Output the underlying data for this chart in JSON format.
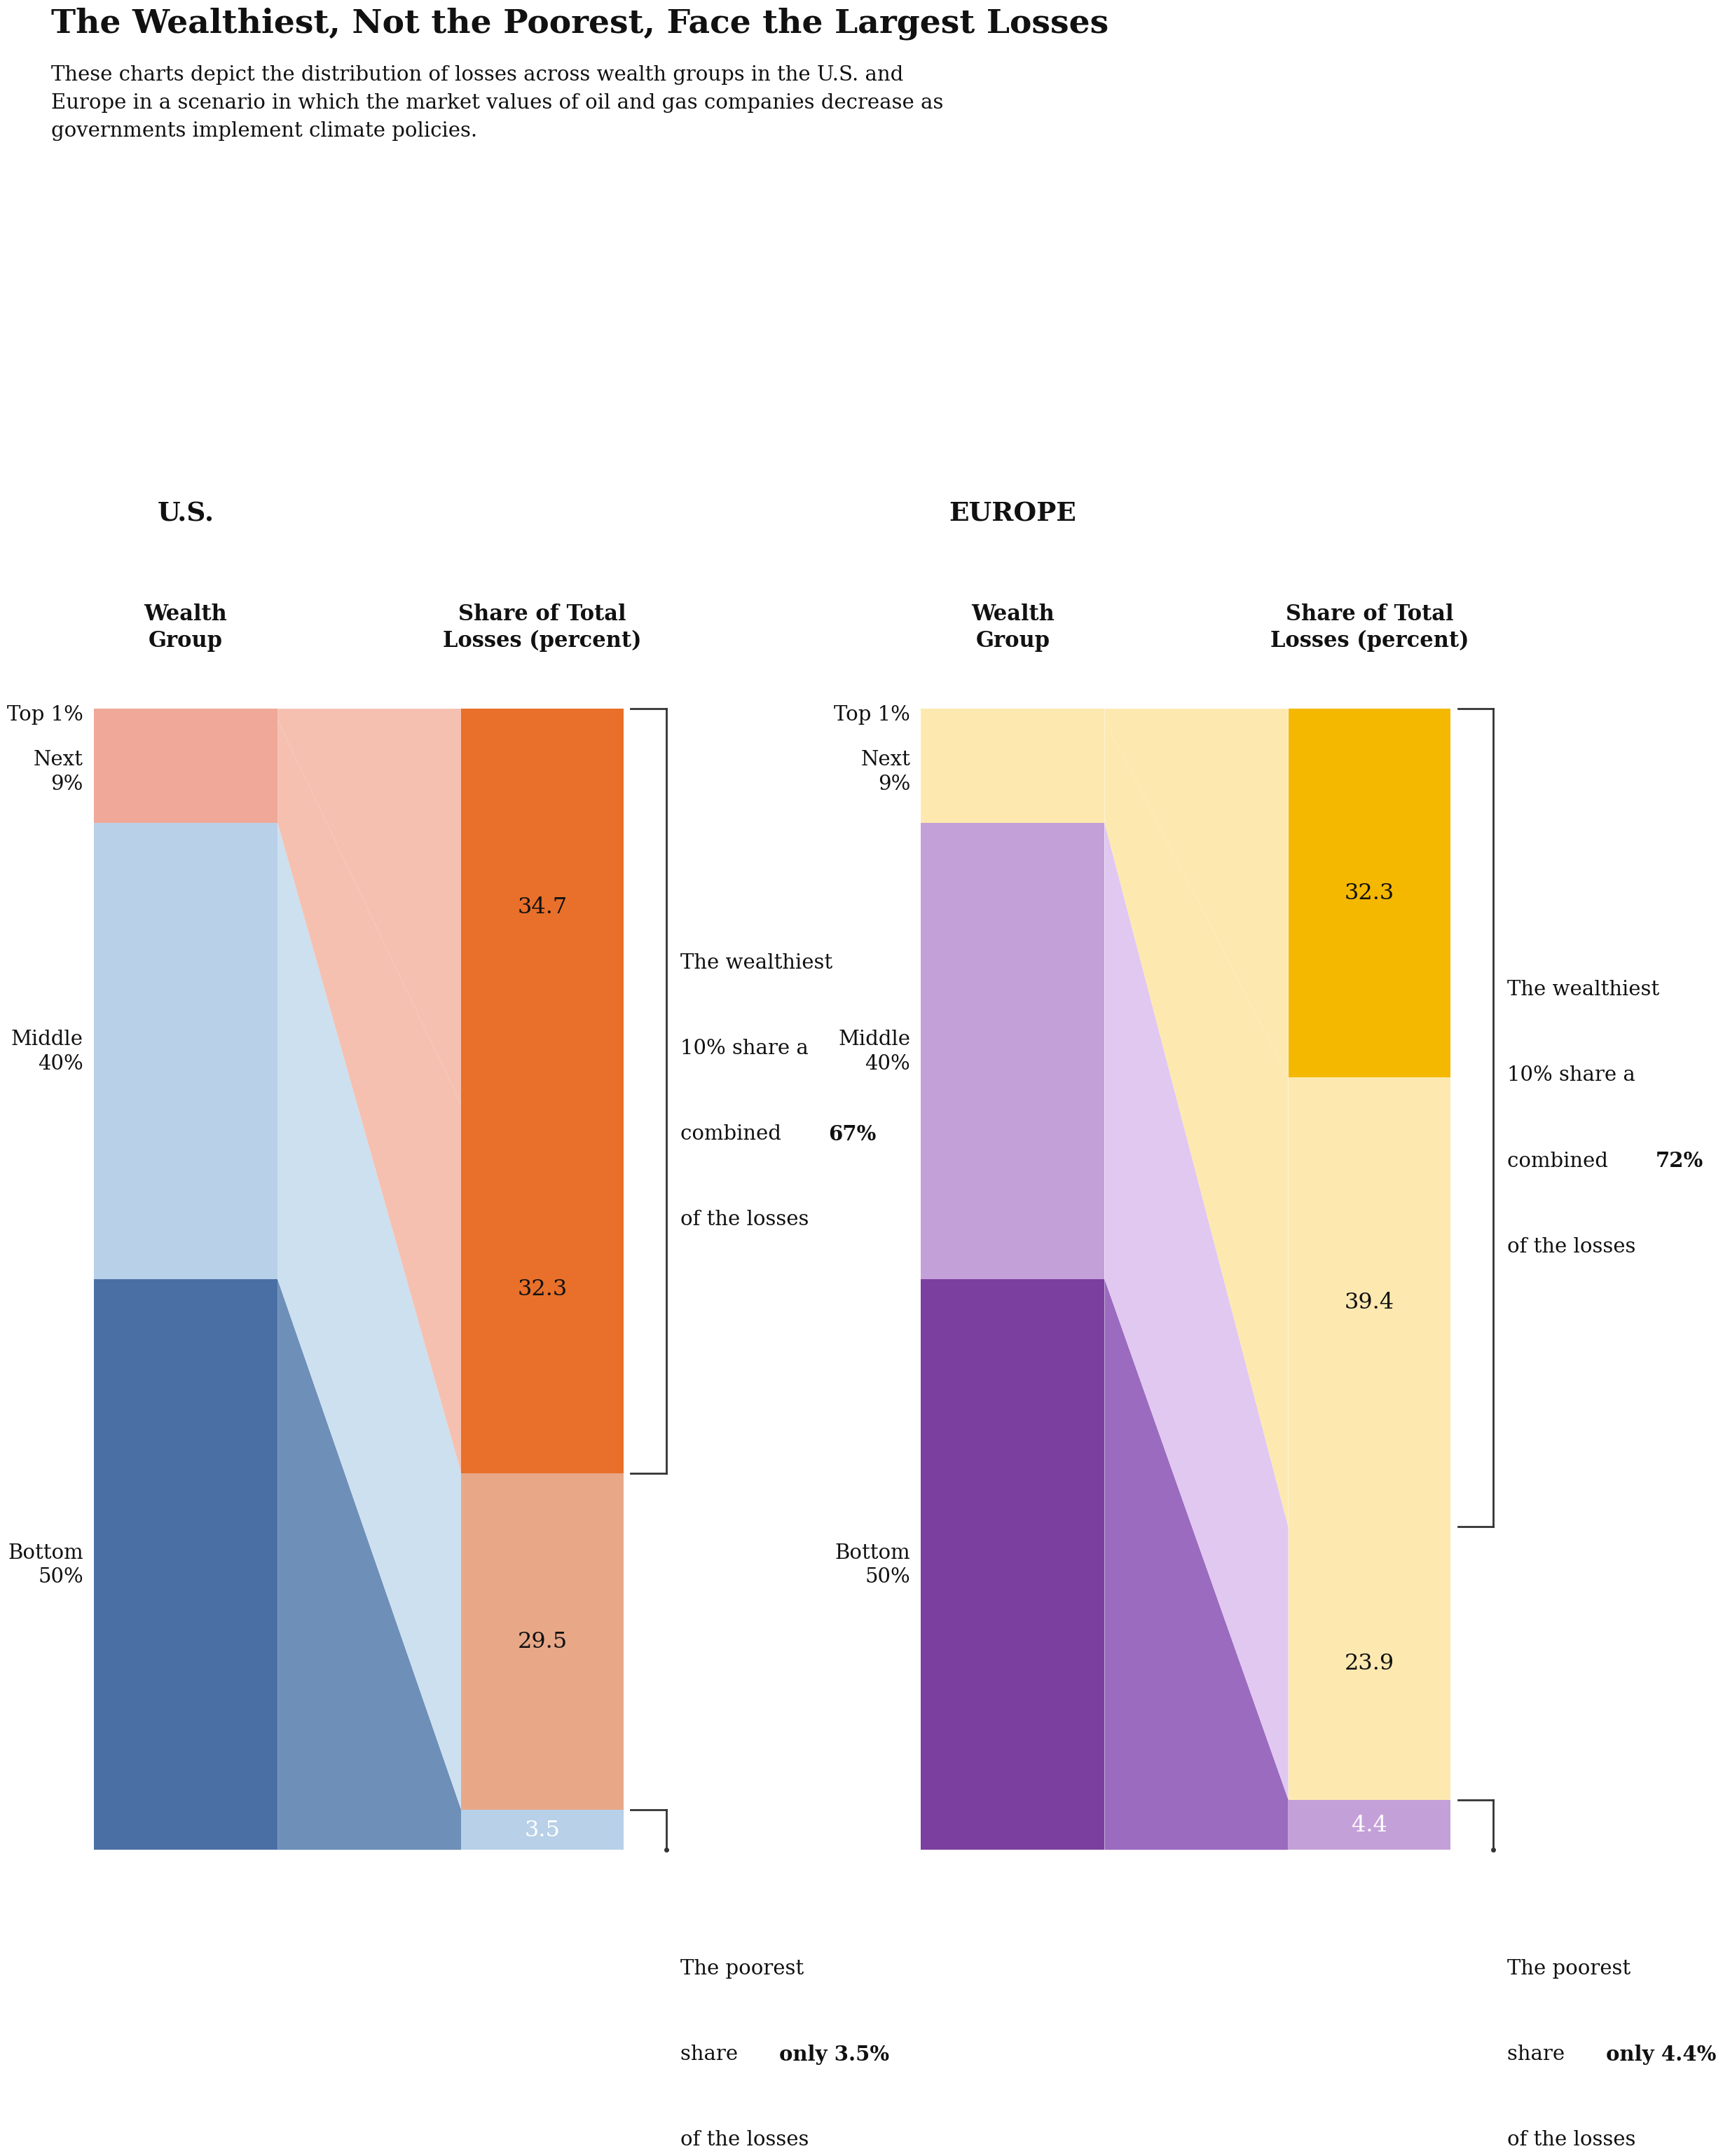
{
  "title": "The Wealthiest, Not the Poorest, Face the Largest Losses",
  "subtitle": "These charts depict the distribution of losses across wealth groups in the U.S. and\nEurope in a scenario in which the market values of oil and gas companies decrease as\ngovernments implement climate policies.",
  "background_color": "#ffffff",
  "charts": [
    {
      "region": "U.S.",
      "population_props": [
        1,
        9,
        40,
        50
      ],
      "loss_props": [
        34.7,
        32.3,
        29.5,
        3.5
      ],
      "colors_left_btop": [
        "#4a6fa5",
        "#b8d0e8",
        "#f0a898",
        "#f0a898"
      ],
      "colors_right_btop": [
        "#b8d0e8",
        "#e8a888",
        "#e8702a",
        "#e8702a"
      ],
      "colors_trap_btop": [
        "#6e8fb8",
        "#cce0f0",
        "#f5c0b0",
        "#f5c0b0"
      ],
      "annot_top_pct": "67%",
      "annot_bot_val": "3.5%",
      "annot_top_prefix": "The wealthiest\n10% share a\ncombined ",
      "annot_top_suffix": "\nof the losses",
      "annot_bot_prefix": "The poorest\nshare only ",
      "annot_bot_suffix": "\nof the losses"
    },
    {
      "region": "EUROPE",
      "population_props": [
        1,
        9,
        40,
        50
      ],
      "loss_props": [
        32.3,
        39.4,
        23.9,
        4.4
      ],
      "colors_left_btop": [
        "#7b3fa0",
        "#c4a0d8",
        "#fde9b0",
        "#fde9b0"
      ],
      "colors_right_btop": [
        "#c4a0d8",
        "#fde9b0",
        "#fde9b0",
        "#f5b800"
      ],
      "colors_trap_btop": [
        "#9b6bc0",
        "#e0c8f0",
        "#fde9b0",
        "#fde9b0"
      ],
      "annot_top_pct": "72%",
      "annot_bot_val": "4.4%",
      "annot_top_prefix": "The wealthiest\n10% share a\ncombined ",
      "annot_top_suffix": "\nof the losses",
      "annot_bot_prefix": "The poorest\nshare only ",
      "annot_bot_suffix": "\nof the losses"
    }
  ]
}
